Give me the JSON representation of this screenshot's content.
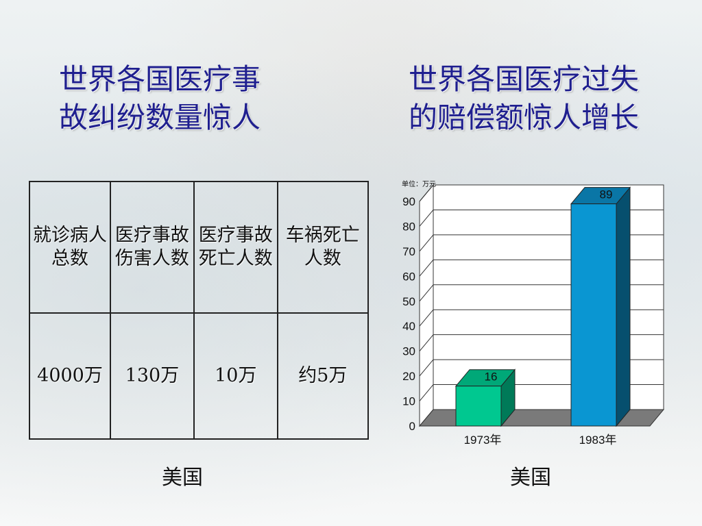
{
  "left_title": {
    "line1": "世界各国医疗事",
    "line2": "故纠纷数量惊人"
  },
  "right_title": {
    "line1": "世界各国医疗过失",
    "line2": "的赔偿额惊人增长"
  },
  "table": {
    "headers": [
      "就诊病人总数",
      "医疗事故伤害人数",
      "医疗事故死亡人数",
      "车祸死亡人数"
    ],
    "values": [
      "4000万",
      "130万",
      "10万",
      "约5万"
    ]
  },
  "left_caption": "美国",
  "right_caption": "美国",
  "chart_data": {
    "type": "bar",
    "unit_label": "单位：万元",
    "categories": [
      "1973年",
      "1983年"
    ],
    "values": [
      16,
      89
    ],
    "data_labels": [
      "16",
      "89"
    ],
    "ylim": [
      0,
      90
    ],
    "yticks": [
      "0",
      "10",
      "20",
      "30",
      "40",
      "50",
      "60",
      "70",
      "80",
      "90"
    ],
    "grid": true,
    "three_d": true,
    "colors": [
      "#00c890",
      "#0a96d2"
    ],
    "floor_color": "#7a7a7a"
  }
}
